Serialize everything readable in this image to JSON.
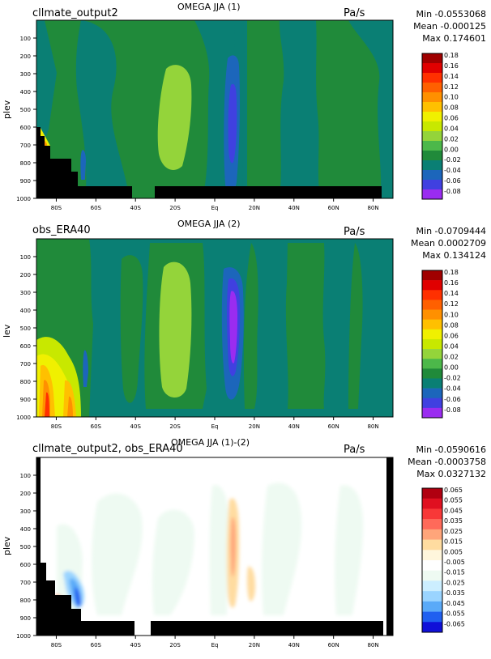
{
  "panels": [
    {
      "source": "cllmate_output2",
      "title": "OMEGA JJA (1)",
      "units": "Pa/s",
      "ylabel": "plev",
      "stats": {
        "min": "Min -0.0553068",
        "mean": "Mean -0.000125",
        "max": "Max 0.174601"
      }
    },
    {
      "source": "obs_ERA40",
      "title": "OMEGA JJA (2)",
      "units": "Pa/s",
      "ylabel": "lev",
      "stats": {
        "min": "Min -0.0709444",
        "mean": "Mean 0.0002709",
        "max": "Max 0.134124"
      }
    },
    {
      "source": "cllmate_output2, obs_ERA40",
      "title": "OMEGA JJA (1)-(2)",
      "units": "Pa/s",
      "ylabel": "plev",
      "stats": {
        "min": "Min -0.0590616",
        "mean": "Mean -0.0003758",
        "max": "Max 0.0327132"
      }
    }
  ],
  "chart_data": [
    {
      "type": "heatmap",
      "xticks": [
        "80S",
        "60S",
        "40S",
        "20S",
        "Eq",
        "20N",
        "40N",
        "60N",
        "80N"
      ],
      "yticks": [
        "100",
        "200",
        "300",
        "400",
        "500",
        "600",
        "700",
        "800",
        "900",
        "1000"
      ],
      "xlim": [
        -90,
        90
      ],
      "ylim": [
        1000,
        0
      ],
      "colorbar_levels": [
        "0.18",
        "0.16",
        "0.14",
        "0.12",
        "0.10",
        "0.08",
        "0.06",
        "0.04",
        "0.02",
        "0.00",
        "-0.02",
        "-0.04",
        "-0.06",
        "-0.08"
      ],
      "colorbar_colors": [
        "#a00000",
        "#e00000",
        "#ff3000",
        "#ff6000",
        "#ff9000",
        "#ffc000",
        "#f0f000",
        "#c8e800",
        "#94d43a",
        "#4cb84a",
        "#208a3a",
        "#0a7f74",
        "#1c66bb",
        "#4040e0",
        "#9a2cf0"
      ]
    },
    {
      "type": "heatmap",
      "xticks": [
        "80S",
        "60S",
        "40S",
        "20S",
        "Eq",
        "20N",
        "40N",
        "60N",
        "80N"
      ],
      "yticks": [
        "100",
        "200",
        "300",
        "400",
        "500",
        "600",
        "700",
        "800",
        "900",
        "1000"
      ],
      "xlim": [
        -90,
        90
      ],
      "ylim": [
        1000,
        0
      ],
      "colorbar_levels": [
        "0.18",
        "0.16",
        "0.14",
        "0.12",
        "0.10",
        "0.08",
        "0.06",
        "0.04",
        "0.02",
        "0.00",
        "-0.02",
        "-0.04",
        "-0.06",
        "-0.08"
      ],
      "colorbar_colors": [
        "#a00000",
        "#e00000",
        "#ff3000",
        "#ff6000",
        "#ff9000",
        "#ffc000",
        "#f0f000",
        "#c8e800",
        "#94d43a",
        "#4cb84a",
        "#208a3a",
        "#0a7f74",
        "#1c66bb",
        "#4040e0",
        "#9a2cf0"
      ]
    },
    {
      "type": "heatmap",
      "xticks": [
        "80S",
        "60S",
        "40S",
        "20S",
        "Eq",
        "20N",
        "40N",
        "60N",
        "80N"
      ],
      "yticks": [
        "100",
        "200",
        "300",
        "400",
        "500",
        "600",
        "700",
        "800",
        "900",
        "1000"
      ],
      "xlim": [
        -90,
        90
      ],
      "ylim": [
        1000,
        0
      ],
      "colorbar_levels": [
        "0.065",
        "0.055",
        "0.045",
        "0.035",
        "0.025",
        "0.015",
        "0.005",
        "-0.005",
        "-0.015",
        "-0.025",
        "-0.035",
        "-0.045",
        "-0.055",
        "-0.065"
      ],
      "colorbar_colors": [
        "#b00010",
        "#e01020",
        "#f83838",
        "#ff6a5a",
        "#ffa57a",
        "#ffdca0",
        "#fff6dc",
        "#ffffff",
        "#eefaf2",
        "#cceeff",
        "#9ad4ff",
        "#5aaaf8",
        "#2060f0",
        "#1010d8"
      ]
    }
  ]
}
